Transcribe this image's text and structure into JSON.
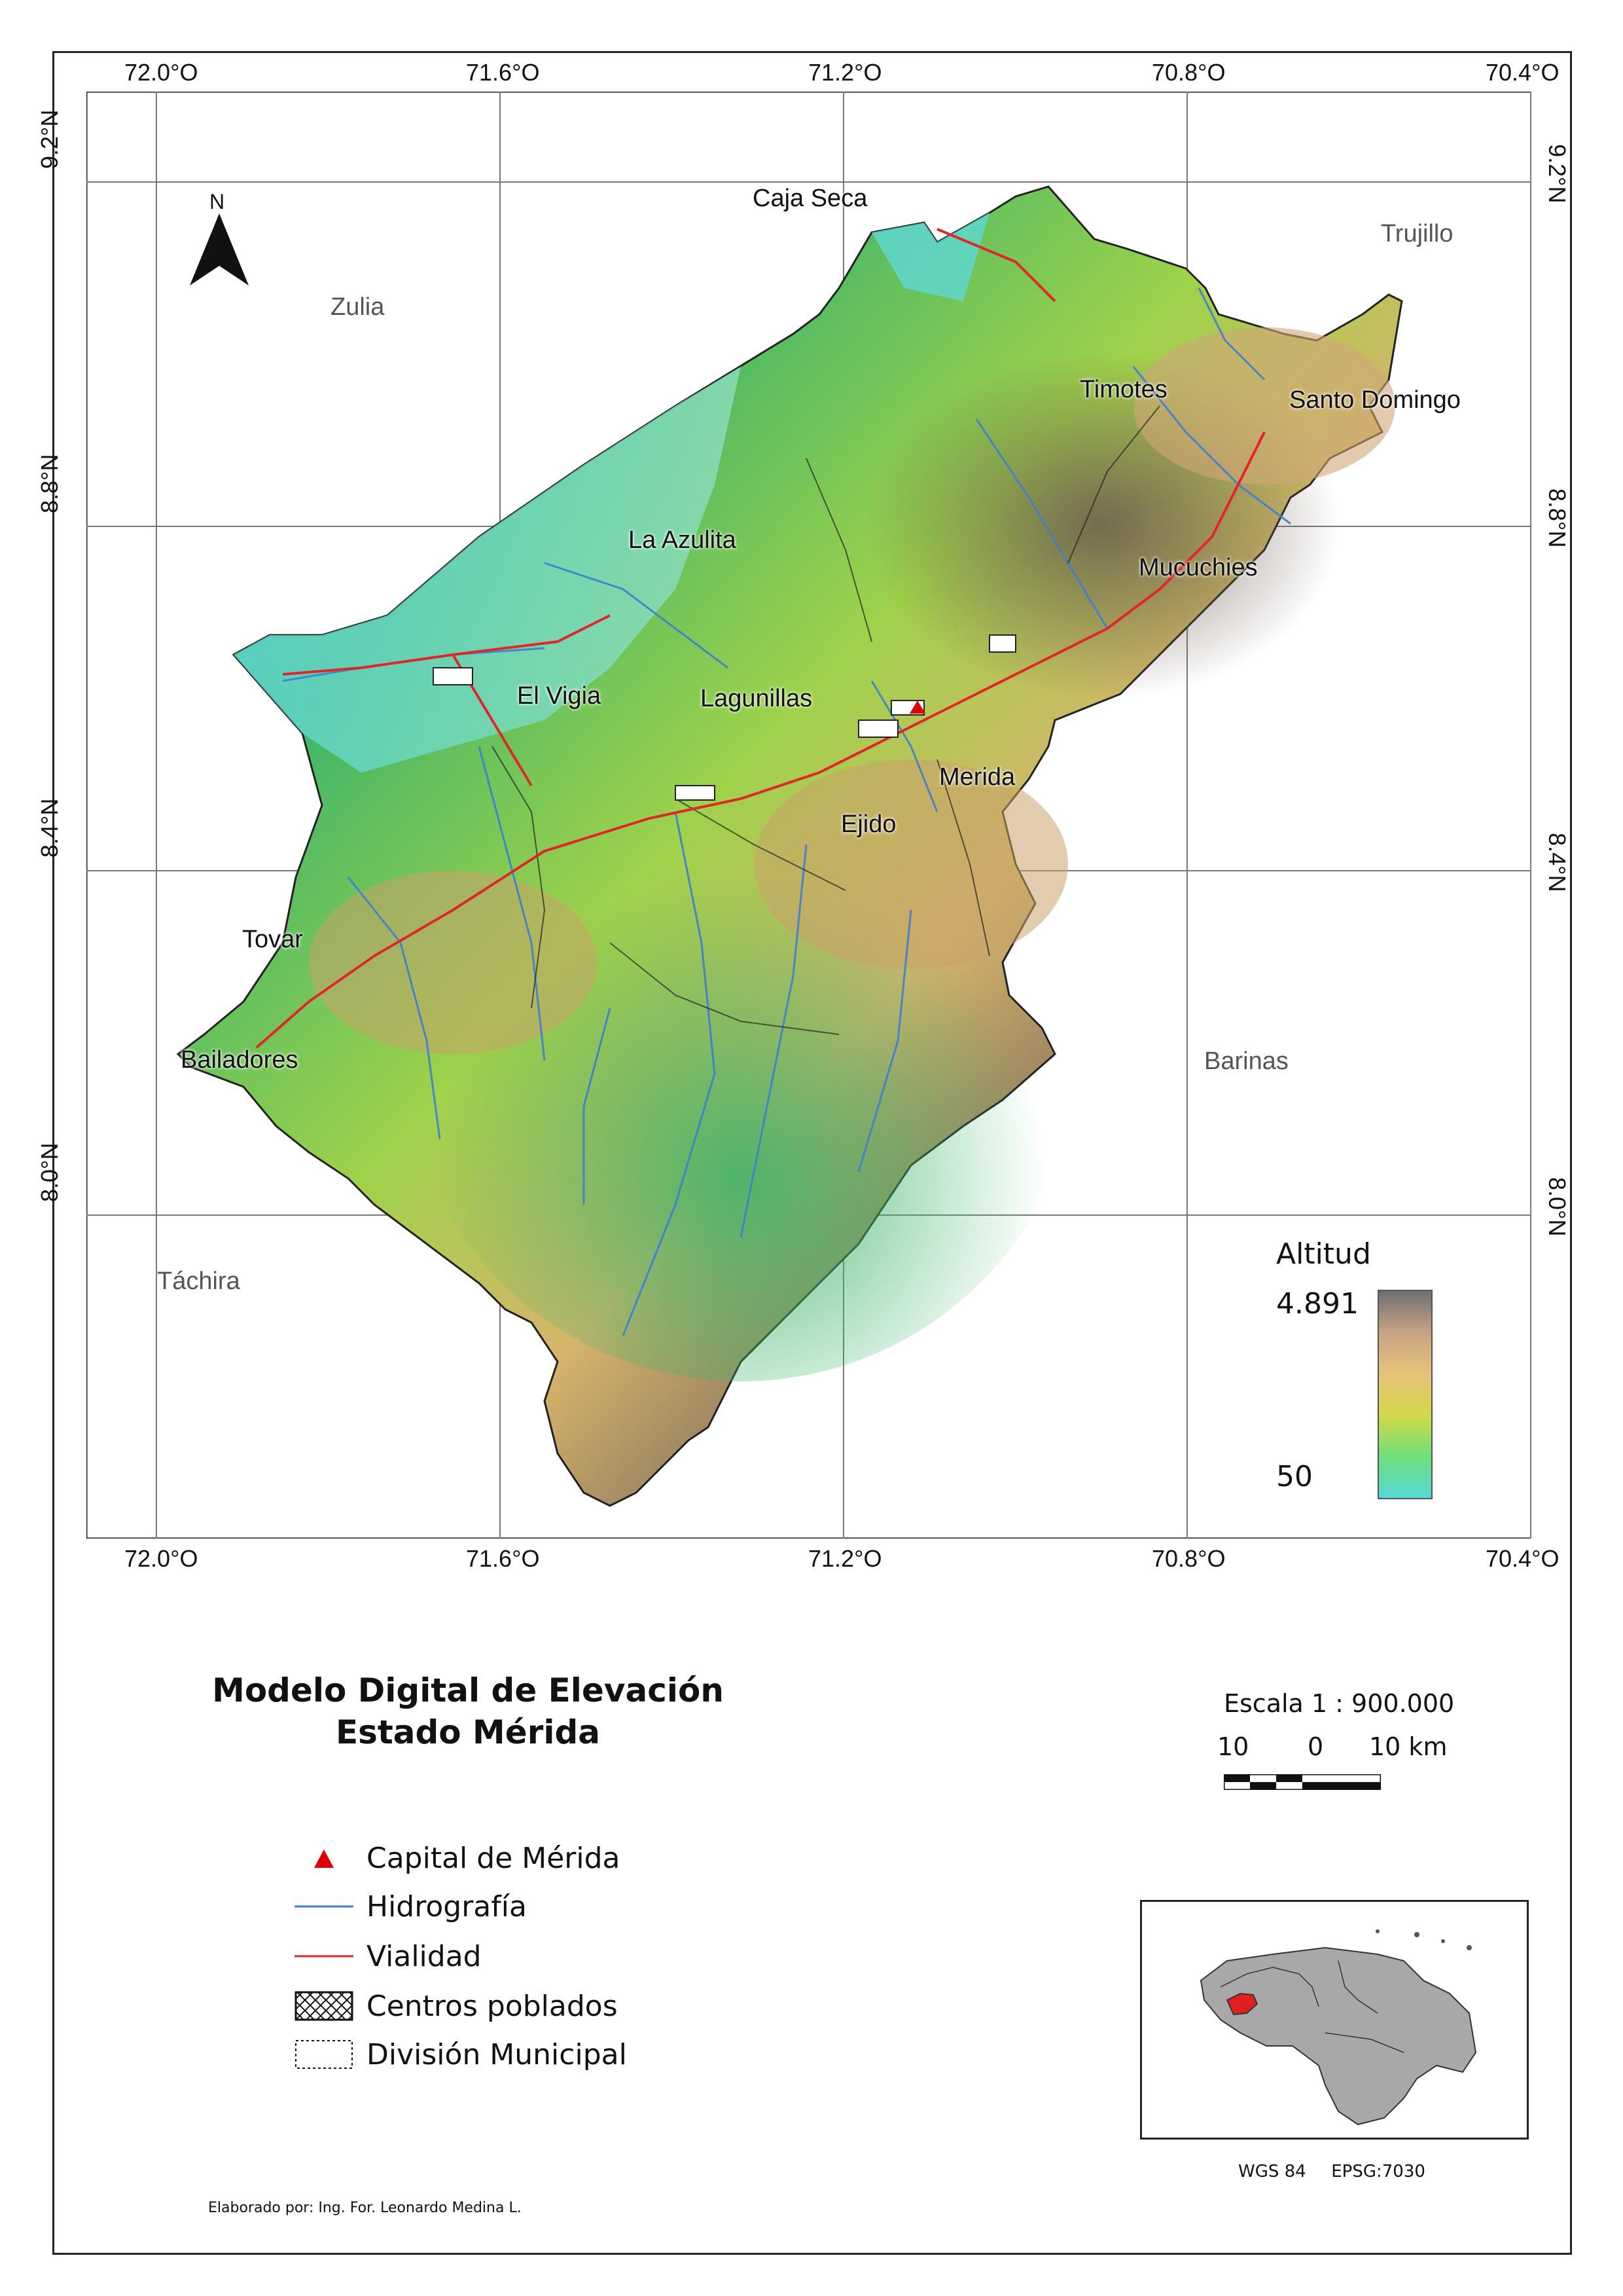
{
  "map": {
    "grid": {
      "lon_labels": [
        "72.0°O",
        "71.6°O",
        "71.2°O",
        "70.8°O",
        "70.4°O"
      ],
      "lat_labels": [
        "9.2°N",
        "8.8°N",
        "8.4°N",
        "8.0°N"
      ]
    },
    "north_arrow": {
      "label": "N"
    },
    "regions": [
      "Zulia",
      "Trujillo",
      "Barinas",
      "Táchira"
    ],
    "places": [
      "Caja Seca",
      "Timotes",
      "Santo Domingo",
      "La Azulita",
      "Mucuchies",
      "El Vigia",
      "Lagunillas",
      "Merida",
      "Ejido",
      "Tovar",
      "Bailadores"
    ],
    "colors": {
      "lowland": "#55d4c8",
      "low": "#3fb56a",
      "mid": "#9fd24a",
      "high": "#d6b46a",
      "peak": "#7a6a5e",
      "river": "#3b7fd0",
      "road": "#e0262b",
      "capital": "#e00000"
    }
  },
  "elevation_legend": {
    "title": "Altitud",
    "max": "4.891",
    "min": "50",
    "gradient": [
      "#6f6f6f",
      "#c7a386",
      "#e8c27a",
      "#d4d84a",
      "#6fe07a",
      "#55d8d6"
    ]
  },
  "title": {
    "line1": "Modelo Digital de Elevación",
    "line2": "Estado Mérida"
  },
  "scale": {
    "text": "Escala 1 : 900.000",
    "labels": [
      "10",
      "0",
      "10 km"
    ]
  },
  "legend": {
    "capital": "Capital de Mérida",
    "hydro": "Hidrografía",
    "roads": "Vialidad",
    "towns": "Centros poblados",
    "municipal": "División Municipal"
  },
  "inset": {
    "highlight_color": "#e02020",
    "land_color": "#a8a8a8"
  },
  "crs": {
    "datum": "WGS 84",
    "epsg": "EPSG:7030"
  },
  "credit": "Elaborado por: Ing. For. Leonardo Medina L."
}
